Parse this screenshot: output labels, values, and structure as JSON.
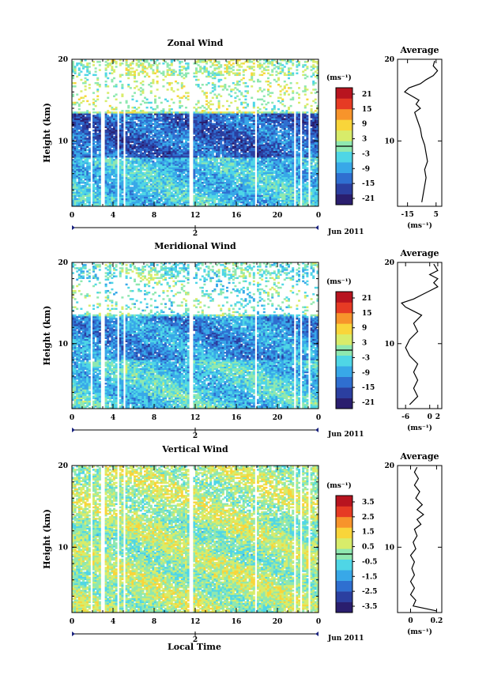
{
  "page": {
    "xlabel": "Local Time"
  },
  "colors": {
    "colormap": [
      "#2a1e6e",
      "#2b3fa0",
      "#2f6fd0",
      "#38a8e8",
      "#4fd6e6",
      "#8fe8b0",
      "#d8ec6a",
      "#f9d53a",
      "#f7942b",
      "#e63b24",
      "#b8141f"
    ],
    "missing": "#ffffff",
    "contour": "#000000"
  },
  "chart_data": [
    {
      "type": "heatmap",
      "title": "Zonal Wind",
      "ylabel": "Height (km)",
      "ylim": [
        2,
        20
      ],
      "xlim": [
        0,
        24
      ],
      "x_ticks": [
        "0",
        "4",
        "8",
        "12",
        "16",
        "20",
        "0"
      ],
      "y_ticks": [
        10,
        20
      ],
      "day_label": "2",
      "date_label": "Jun 2011",
      "colorbar": {
        "unit": "(ms⁻¹)",
        "ticks": [
          "21",
          "15",
          "9",
          "3",
          "-3",
          "-9",
          "-15",
          "-21"
        ],
        "range": [
          -24,
          24
        ]
      },
      "field": {
        "low": -6,
        "mid": -14,
        "top": 2,
        "mean": -5
      },
      "profile": {
        "title": "Average",
        "unit": "(ms⁻¹)",
        "xlim": [
          -22,
          9
        ],
        "x_ticks": [
          -15,
          5
        ],
        "y_ticks": [
          10,
          20
        ],
        "points": [
          [
            -5,
            2.5
          ],
          [
            -4,
            3.5
          ],
          [
            -3,
            4.5
          ],
          [
            -2,
            5.5
          ],
          [
            -3,
            6.5
          ],
          [
            -1,
            7.5
          ],
          [
            -2,
            8.5
          ],
          [
            -3,
            9.5
          ],
          [
            -5,
            10.5
          ],
          [
            -6,
            11.5
          ],
          [
            -8,
            12.5
          ],
          [
            -10,
            13.5
          ],
          [
            -6,
            14.0
          ],
          [
            -9,
            14.5
          ],
          [
            -7,
            15.0
          ],
          [
            -12,
            15.5
          ],
          [
            -17,
            16.0
          ],
          [
            -14,
            16.5
          ],
          [
            -6,
            17.0
          ],
          [
            -2,
            17.5
          ],
          [
            3,
            18.0
          ],
          [
            6,
            18.6
          ],
          [
            3,
            19.2
          ],
          [
            4,
            19.8
          ]
        ]
      }
    },
    {
      "type": "heatmap",
      "title": "Meridional Wind",
      "ylabel": "Height (km)",
      "ylim": [
        2,
        20
      ],
      "xlim": [
        0,
        24
      ],
      "x_ticks": [
        "0",
        "4",
        "8",
        "12",
        "16",
        "20",
        "0"
      ],
      "y_ticks": [
        10,
        20
      ],
      "day_label": "2",
      "date_label": "Jun 2011",
      "colorbar": {
        "unit": "(ms⁻¹)",
        "ticks": [
          "21",
          "15",
          "9",
          "3",
          "-3",
          "-9",
          "-15",
          "-21"
        ],
        "range": [
          -24,
          24
        ]
      },
      "field": {
        "low": -5,
        "mid": -10,
        "top": -2,
        "mean": -3
      },
      "profile": {
        "title": "Average",
        "unit": "(ms⁻¹)",
        "xlim": [
          -8,
          3
        ],
        "x_ticks": [
          -6,
          0,
          2
        ],
        "y_ticks": [
          10,
          20
        ],
        "points": [
          [
            -5,
            2.5
          ],
          [
            -3,
            3.5
          ],
          [
            -4,
            4.5
          ],
          [
            -3,
            5.5
          ],
          [
            -4,
            6.5
          ],
          [
            -3,
            7.5
          ],
          [
            -5,
            8.5
          ],
          [
            -6,
            9.5
          ],
          [
            -5,
            10.5
          ],
          [
            -3,
            11.5
          ],
          [
            -4,
            12.5
          ],
          [
            -2,
            13.5
          ],
          [
            -4,
            14.0
          ],
          [
            -6,
            14.5
          ],
          [
            -7,
            15.0
          ],
          [
            -4,
            15.5
          ],
          [
            -2,
            16.0
          ],
          [
            0,
            16.5
          ],
          [
            2,
            17.0
          ],
          [
            1,
            17.5
          ],
          [
            2,
            18.0
          ],
          [
            0,
            18.5
          ],
          [
            2,
            19.0
          ],
          [
            1,
            19.8
          ]
        ]
      }
    },
    {
      "type": "heatmap",
      "title": "Vertical Wind",
      "ylabel": "Height (km)",
      "ylim": [
        2,
        20
      ],
      "xlim": [
        0,
        24
      ],
      "x_ticks": [
        "0",
        "4",
        "8",
        "12",
        "16",
        "20",
        "0"
      ],
      "y_ticks": [
        10,
        20
      ],
      "day_label": "2",
      "date_label": "Jun 2011",
      "colorbar": {
        "unit": "(ms⁻¹)",
        "ticks": [
          "3.5",
          "2.5",
          "1.5",
          "0.5",
          "-0.5",
          "-1.5",
          "-2.5",
          "-3.5"
        ],
        "range": [
          -4,
          4
        ]
      },
      "field": {
        "low": 0.3,
        "mid": 0.2,
        "top": 0.4,
        "mean": 0.3
      },
      "profile": {
        "title": "Average",
        "unit": "(ms⁻¹)",
        "xlim": [
          -0.1,
          0.24
        ],
        "x_ticks": [
          0.0,
          0.2
        ],
        "y_ticks": [
          10,
          20
        ],
        "points": [
          [
            0.2,
            2.2
          ],
          [
            0.02,
            2.8
          ],
          [
            0.04,
            3.5
          ],
          [
            0.0,
            4.2
          ],
          [
            0.03,
            5.0
          ],
          [
            0.0,
            5.8
          ],
          [
            0.03,
            6.6
          ],
          [
            0.01,
            7.4
          ],
          [
            0.03,
            8.2
          ],
          [
            0.0,
            9.0
          ],
          [
            0.04,
            9.8
          ],
          [
            0.02,
            10.6
          ],
          [
            0.05,
            11.4
          ],
          [
            0.03,
            12.2
          ],
          [
            0.08,
            12.8
          ],
          [
            0.05,
            13.4
          ],
          [
            0.1,
            14.0
          ],
          [
            0.05,
            14.6
          ],
          [
            0.09,
            15.2
          ],
          [
            0.04,
            16.0
          ],
          [
            0.07,
            16.8
          ],
          [
            0.03,
            17.6
          ],
          [
            0.06,
            18.4
          ],
          [
            0.03,
            19.2
          ],
          [
            0.05,
            19.8
          ]
        ]
      }
    }
  ]
}
